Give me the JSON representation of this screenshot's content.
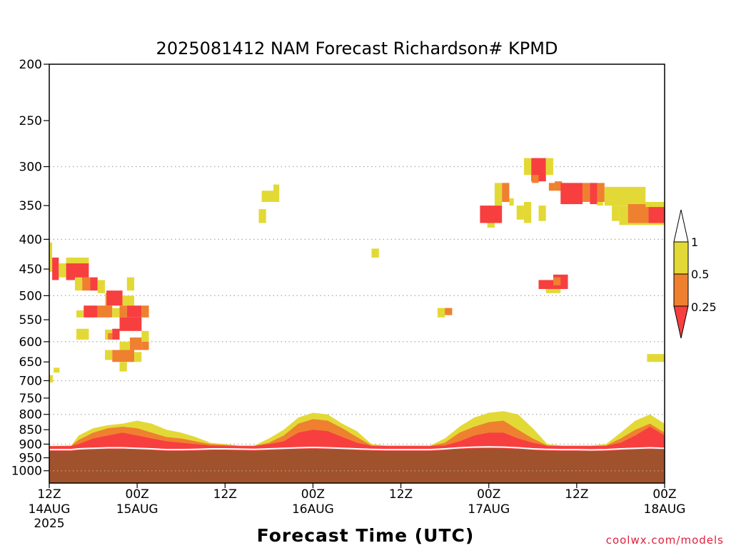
{
  "chart_data": {
    "type": "heatmap",
    "title": "2025081412 NAM Forecast Richardson# KPMD",
    "xlabel": "Forecast Time (UTC)",
    "ylabel": "",
    "credit": "coolwx.com/models",
    "x_unit": "hours since 2025-08-14 12Z",
    "xlim": [
      0,
      84
    ],
    "ylim": [
      1050,
      200
    ],
    "y_scale": "log-pressure",
    "y_ticks": [
      "200",
      "250",
      "300",
      "350",
      "400",
      "450",
      "500",
      "550",
      "600",
      "650",
      "700",
      "750",
      "800",
      "850",
      "900",
      "950",
      "1000"
    ],
    "x_ticks": [
      {
        "label": "12Z",
        "date": "14AUG",
        "year": "2025"
      },
      {
        "label": "00Z",
        "date": "15AUG",
        "year": ""
      },
      {
        "label": "12Z",
        "date": "",
        "year": ""
      },
      {
        "label": "00Z",
        "date": "16AUG",
        "year": ""
      },
      {
        "label": "12Z",
        "date": "",
        "year": ""
      },
      {
        "label": "00Z",
        "date": "17AUG",
        "year": ""
      },
      {
        "label": "12Z",
        "date": "",
        "year": ""
      },
      {
        "label": "00Z",
        "date": "18AUG",
        "year": ""
      }
    ],
    "x_tick_hours": [
      0,
      12,
      24,
      36,
      48,
      60,
      72,
      84
    ],
    "grid_levels_hpa": [
      300,
      400,
      500,
      600,
      700,
      800,
      900,
      1000
    ],
    "legend": {
      "placement": "right",
      "levels": [
        "1",
        "0.5",
        "0.25"
      ],
      "colors": {
        "above_1": "#ffffff",
        "0.5-1": "#e0d838",
        "0.25-0.5": "#f08030",
        "below_0.25": "#f84040"
      }
    },
    "colors": {
      "yellow": "#e3d936",
      "orange": "#ef8030",
      "red": "#f73f3f",
      "ground": "#a0522d",
      "grid": "#aaaaaa"
    },
    "cells": [
      {
        "h0": 0.0,
        "h1": 0.4,
        "p0": 405,
        "p1": 455,
        "c": "yellow"
      },
      {
        "h0": 0.4,
        "h1": 1.3,
        "p0": 430,
        "p1": 470,
        "c": "red"
      },
      {
        "h0": 1.3,
        "h1": 2.3,
        "p0": 440,
        "p1": 465,
        "c": "yellow"
      },
      {
        "h0": 2.3,
        "h1": 5.4,
        "p0": 430,
        "p1": 445,
        "c": "yellow"
      },
      {
        "h0": 2.3,
        "h1": 5.4,
        "p0": 440,
        "p1": 470,
        "c": "red"
      },
      {
        "h0": 3.5,
        "h1": 4.5,
        "p0": 465,
        "p1": 490,
        "c": "yellow"
      },
      {
        "h0": 4.5,
        "h1": 5.6,
        "p0": 465,
        "p1": 490,
        "c": "orange"
      },
      {
        "h0": 5.6,
        "h1": 6.6,
        "p0": 465,
        "p1": 490,
        "c": "red"
      },
      {
        "h0": 6.6,
        "h1": 7.6,
        "p0": 470,
        "p1": 495,
        "c": "yellow"
      },
      {
        "h0": 10.6,
        "h1": 11.6,
        "p0": 465,
        "p1": 490,
        "c": "yellow"
      },
      {
        "h0": 7.6,
        "h1": 8.6,
        "p0": 495,
        "p1": 520,
        "c": "yellow"
      },
      {
        "h0": 7.8,
        "h1": 10.0,
        "p0": 490,
        "p1": 520,
        "c": "red"
      },
      {
        "h0": 10.0,
        "h1": 11.6,
        "p0": 500,
        "p1": 520,
        "c": "yellow"
      },
      {
        "h0": 3.7,
        "h1": 4.7,
        "p0": 530,
        "p1": 545,
        "c": "yellow"
      },
      {
        "h0": 4.7,
        "h1": 6.6,
        "p0": 520,
        "p1": 545,
        "c": "red"
      },
      {
        "h0": 6.6,
        "h1": 8.6,
        "p0": 520,
        "p1": 545,
        "c": "orange"
      },
      {
        "h0": 8.6,
        "h1": 9.6,
        "p0": 525,
        "p1": 545,
        "c": "yellow"
      },
      {
        "h0": 9.6,
        "h1": 10.6,
        "p0": 520,
        "p1": 545,
        "c": "orange"
      },
      {
        "h0": 10.6,
        "h1": 12.6,
        "p0": 520,
        "p1": 545,
        "c": "red"
      },
      {
        "h0": 12.6,
        "h1": 13.6,
        "p0": 520,
        "p1": 545,
        "c": "orange"
      },
      {
        "h0": 9.6,
        "h1": 12.6,
        "p0": 545,
        "p1": 575,
        "c": "red"
      },
      {
        "h0": 3.7,
        "h1": 5.4,
        "p0": 570,
        "p1": 595,
        "c": "yellow"
      },
      {
        "h0": 7.6,
        "h1": 8.6,
        "p0": 572,
        "p1": 595,
        "c": "yellow"
      },
      {
        "h0": 8.0,
        "h1": 8.6,
        "p0": 580,
        "p1": 595,
        "c": "orange"
      },
      {
        "h0": 8.6,
        "h1": 9.6,
        "p0": 570,
        "p1": 595,
        "c": "red"
      },
      {
        "h0": 12.6,
        "h1": 13.6,
        "p0": 575,
        "p1": 600,
        "c": "yellow"
      },
      {
        "h0": 11.0,
        "h1": 12.6,
        "p0": 590,
        "p1": 620,
        "c": "orange"
      },
      {
        "h0": 12.6,
        "h1": 13.6,
        "p0": 600,
        "p1": 620,
        "c": "orange"
      },
      {
        "h0": 9.6,
        "h1": 11.0,
        "p0": 600,
        "p1": 620,
        "c": "yellow"
      },
      {
        "h0": 7.6,
        "h1": 8.6,
        "p0": 620,
        "p1": 645,
        "c": "yellow"
      },
      {
        "h0": 8.6,
        "h1": 11.6,
        "p0": 620,
        "p1": 650,
        "c": "orange"
      },
      {
        "h0": 11.6,
        "h1": 12.6,
        "p0": 625,
        "p1": 650,
        "c": "yellow"
      },
      {
        "h0": 9.6,
        "h1": 10.6,
        "p0": 650,
        "p1": 675,
        "c": "yellow"
      },
      {
        "h0": 0.6,
        "h1": 1.4,
        "p0": 665,
        "p1": 678,
        "c": "yellow"
      },
      {
        "h0": 0.0,
        "h1": 0.5,
        "p0": 685,
        "p1": 705,
        "c": "yellow"
      },
      {
        "h0": 28.6,
        "h1": 29.6,
        "p0": 355,
        "p1": 375,
        "c": "yellow"
      },
      {
        "h0": 29.0,
        "h1": 30.6,
        "p0": 330,
        "p1": 345,
        "c": "yellow"
      },
      {
        "h0": 30.6,
        "h1": 31.4,
        "p0": 322,
        "p1": 345,
        "c": "yellow"
      },
      {
        "h0": 44.0,
        "h1": 45.0,
        "p0": 415,
        "p1": 430,
        "c": "yellow"
      },
      {
        "h0": 53.0,
        "h1": 54.0,
        "p0": 525,
        "p1": 545,
        "c": "yellow"
      },
      {
        "h0": 54.0,
        "h1": 55.0,
        "p0": 525,
        "p1": 540,
        "c": "orange"
      },
      {
        "h0": 58.8,
        "h1": 61.8,
        "p0": 350,
        "p1": 375,
        "c": "red"
      },
      {
        "h0": 59.8,
        "h1": 60.8,
        "p0": 375,
        "p1": 382,
        "c": "yellow"
      },
      {
        "h0": 60.8,
        "h1": 61.8,
        "p0": 320,
        "p1": 350,
        "c": "yellow"
      },
      {
        "h0": 61.8,
        "h1": 62.8,
        "p0": 320,
        "p1": 345,
        "c": "orange"
      },
      {
        "h0": 62.8,
        "h1": 63.4,
        "p0": 340,
        "p1": 350,
        "c": "yellow"
      },
      {
        "h0": 63.8,
        "h1": 64.8,
        "p0": 350,
        "p1": 370,
        "c": "yellow"
      },
      {
        "h0": 64.8,
        "h1": 65.8,
        "p0": 345,
        "p1": 375,
        "c": "yellow"
      },
      {
        "h0": 66.8,
        "h1": 67.8,
        "p0": 350,
        "p1": 372,
        "c": "yellow"
      },
      {
        "h0": 64.8,
        "h1": 65.8,
        "p0": 290,
        "p1": 310,
        "c": "yellow"
      },
      {
        "h0": 65.8,
        "h1": 67.8,
        "p0": 290,
        "p1": 318,
        "c": "red"
      },
      {
        "h0": 67.8,
        "h1": 68.8,
        "p0": 290,
        "p1": 310,
        "c": "yellow"
      },
      {
        "h0": 65.9,
        "h1": 66.8,
        "p0": 310,
        "p1": 320,
        "c": "orange"
      },
      {
        "h0": 66.8,
        "h1": 68.8,
        "p0": 470,
        "p1": 487,
        "c": "red"
      },
      {
        "h0": 68.8,
        "h1": 70.8,
        "p0": 460,
        "p1": 487,
        "c": "red"
      },
      {
        "h0": 67.8,
        "h1": 69.8,
        "p0": 487,
        "p1": 495,
        "c": "yellow"
      },
      {
        "h0": 68.8,
        "h1": 69.8,
        "p0": 465,
        "p1": 480,
        "c": "orange"
      },
      {
        "h0": 69.0,
        "h1": 70.0,
        "p0": 318,
        "p1": 330,
        "c": "orange"
      },
      {
        "h0": 68.2,
        "h1": 69.0,
        "p0": 320,
        "p1": 330,
        "c": "orange"
      },
      {
        "h0": 69.8,
        "h1": 72.8,
        "p0": 320,
        "p1": 348,
        "c": "red"
      },
      {
        "h0": 72.8,
        "h1": 73.8,
        "p0": 320,
        "p1": 345,
        "c": "orange"
      },
      {
        "h0": 73.8,
        "h1": 74.8,
        "p0": 320,
        "p1": 348,
        "c": "red"
      },
      {
        "h0": 74.8,
        "h1": 75.8,
        "p0": 320,
        "p1": 345,
        "c": "orange"
      },
      {
        "h0": 74.8,
        "h1": 75.6,
        "p0": 345,
        "p1": 350,
        "c": "yellow"
      },
      {
        "h0": 75.8,
        "h1": 81.4,
        "p0": 325,
        "p1": 350,
        "c": "yellow"
      },
      {
        "h0": 76.8,
        "h1": 77.8,
        "p0": 350,
        "p1": 372,
        "c": "yellow"
      },
      {
        "h0": 77.8,
        "h1": 79.0,
        "p0": 350,
        "p1": 378,
        "c": "yellow"
      },
      {
        "h0": 79.0,
        "h1": 81.8,
        "p0": 348,
        "p1": 375,
        "c": "orange"
      },
      {
        "h0": 81.8,
        "h1": 84.0,
        "p0": 348,
        "p1": 375,
        "c": "red"
      },
      {
        "h0": 84.0,
        "h1": 84.0,
        "p0": 348,
        "p1": 375,
        "c": "red"
      },
      {
        "h0": 81.4,
        "h1": 84.0,
        "p0": 345,
        "p1": 352,
        "c": "yellow"
      },
      {
        "h0": 79.0,
        "h1": 84.0,
        "p0": 375,
        "p1": 378,
        "c": "yellow"
      },
      {
        "h0": 81.6,
        "h1": 84.0,
        "p0": 630,
        "p1": 650,
        "c": "yellow"
      }
    ],
    "low_level_bands": [
      {
        "h": [
          0,
          3,
          4,
          6,
          8,
          10,
          12,
          14,
          16,
          18,
          20,
          22,
          24,
          26,
          28,
          30,
          32,
          34,
          36,
          38,
          40,
          42,
          44,
          46,
          48,
          50,
          52,
          54,
          56,
          58,
          60,
          62,
          64,
          66,
          68,
          70,
          72,
          74,
          76,
          78,
          80,
          82,
          84
        ],
        "top_yellow": [
          906,
          905,
          870,
          845,
          835,
          830,
          820,
          830,
          850,
          860,
          875,
          895,
          900,
          905,
          905,
          880,
          850,
          810,
          795,
          800,
          830,
          855,
          900,
          905,
          905,
          905,
          905,
          880,
          840,
          810,
          795,
          790,
          800,
          845,
          900,
          905,
          905,
          905,
          900,
          860,
          820,
          800,
          830
        ],
        "top_orange": [
          907,
          906,
          885,
          860,
          845,
          840,
          845,
          860,
          875,
          880,
          890,
          900,
          903,
          906,
          906,
          895,
          870,
          830,
          815,
          820,
          845,
          875,
          905,
          906,
          906,
          906,
          906,
          895,
          860,
          840,
          825,
          820,
          850,
          880,
          905,
          906,
          906,
          906,
          905,
          880,
          850,
          830,
          860
        ],
        "top_red": [
          908,
          907,
          900,
          880,
          870,
          860,
          870,
          880,
          890,
          895,
          900,
          905,
          906,
          907,
          907,
          900,
          890,
          860,
          850,
          855,
          875,
          895,
          906,
          907,
          907,
          907,
          907,
          905,
          890,
          870,
          860,
          860,
          880,
          895,
          906,
          907,
          907,
          907,
          906,
          895,
          870,
          840,
          870
        ],
        "ground": [
          925,
          925,
          922,
          920,
          918,
          918,
          920,
          922,
          925,
          925,
          924,
          922,
          922,
          923,
          924,
          922,
          920,
          918,
          917,
          918,
          920,
          922,
          924,
          925,
          925,
          925,
          925,
          922,
          918,
          916,
          915,
          916,
          918,
          922,
          924,
          925,
          925,
          926,
          925,
          922,
          920,
          918,
          920
        ]
      }
    ]
  }
}
